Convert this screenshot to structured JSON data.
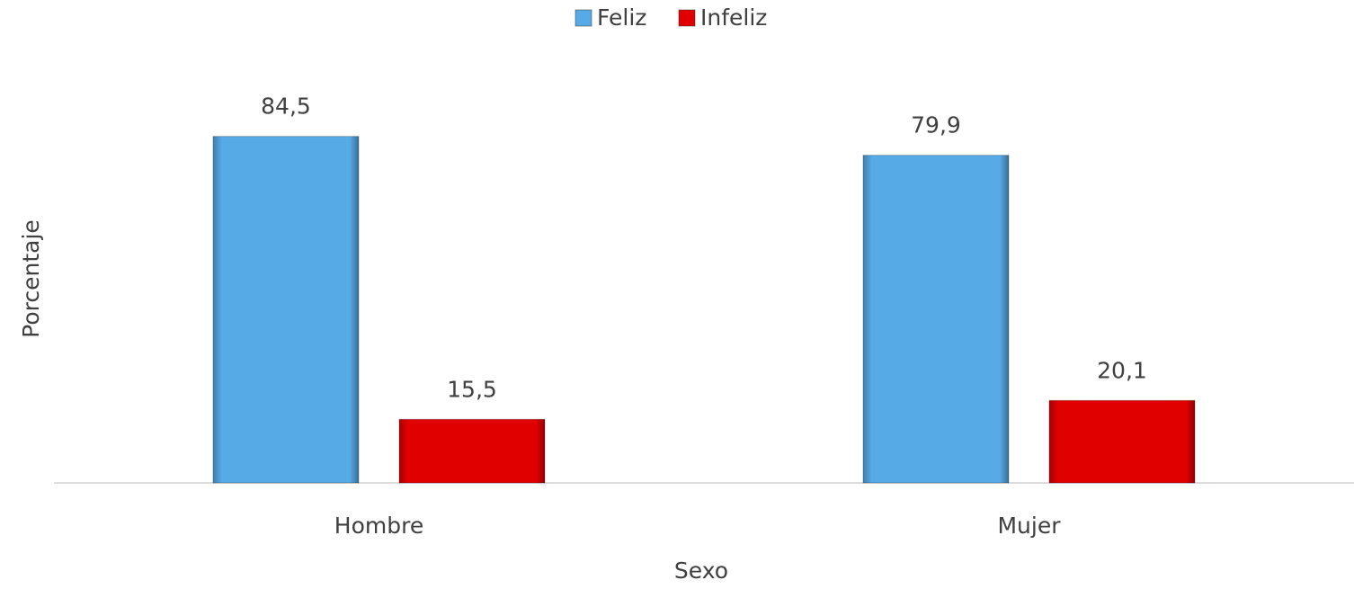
{
  "chart_data": {
    "type": "bar",
    "categories": [
      "Hombre",
      "Mujer"
    ],
    "series": [
      {
        "name": "Feliz",
        "color": "#56aae6",
        "values": [
          84.5,
          79.9
        ],
        "value_labels": [
          "84,5",
          "79,9"
        ]
      },
      {
        "name": "Infeliz",
        "color": "#e00000",
        "values": [
          15.5,
          20.1
        ],
        "value_labels": [
          "15,5",
          "20,1"
        ]
      }
    ],
    "ylim": [
      0,
      100
    ],
    "x_label": "Sexo",
    "y_label": "Porcentaje",
    "legend": "top"
  }
}
